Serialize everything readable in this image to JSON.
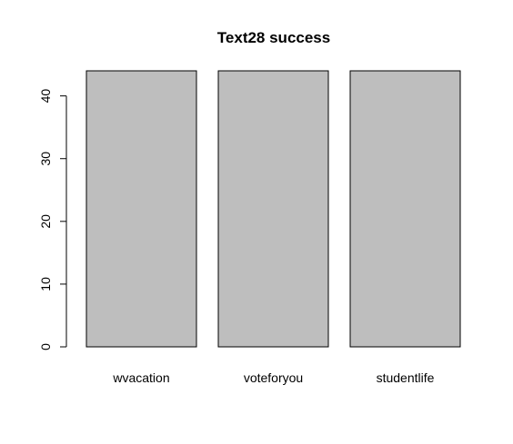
{
  "chart_data": {
    "type": "bar",
    "title": "Text28 success",
    "xlabel": "",
    "ylabel": "",
    "categories": [
      "wvacation",
      "voteforyou",
      "studentlife"
    ],
    "values": [
      44,
      44,
      44
    ],
    "ylim": [
      0,
      44
    ],
    "yticks": [
      0,
      10,
      20,
      30,
      40
    ],
    "grid": false,
    "legend": "none",
    "colors": {
      "bar_fill": "#bebebe",
      "bar_stroke": "#000000",
      "axis": "#000000",
      "text": "#000000",
      "background": "#ffffff"
    }
  }
}
